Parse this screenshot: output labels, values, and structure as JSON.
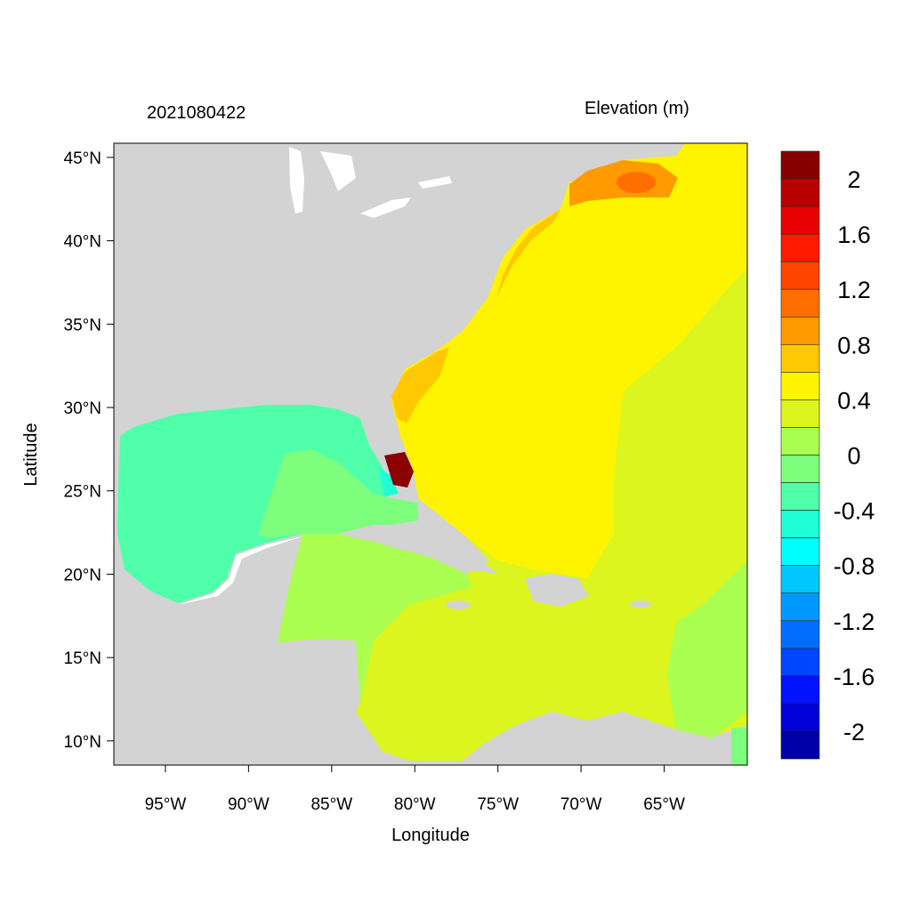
{
  "chart_data": {
    "type": "heatmap",
    "title_left": "2021080422",
    "title_right": "Elevation (m)",
    "xlabel": "Longitude",
    "ylabel": "Latitude",
    "xlim": [
      -98.1,
      -60.0
    ],
    "ylim": [
      8.55,
      45.85
    ],
    "x_ticks": [
      {
        "value": -95,
        "label": "95°W"
      },
      {
        "value": -90,
        "label": "90°W"
      },
      {
        "value": -85,
        "label": "85°W"
      },
      {
        "value": -80,
        "label": "80°W"
      },
      {
        "value": -75,
        "label": "75°W"
      },
      {
        "value": -70,
        "label": "70°W"
      },
      {
        "value": -65,
        "label": "65°W"
      }
    ],
    "y_ticks": [
      {
        "value": 45,
        "label": "45°N"
      },
      {
        "value": 40,
        "label": "40°N"
      },
      {
        "value": 35,
        "label": "35°N"
      },
      {
        "value": 30,
        "label": "30°N"
      },
      {
        "value": 25,
        "label": "25°N"
      },
      {
        "value": 20,
        "label": "20°N"
      },
      {
        "value": 15,
        "label": "15°N"
      },
      {
        "value": 10,
        "label": "10°N"
      }
    ],
    "colorbar": {
      "range": [
        -2.2,
        2.2
      ],
      "step": 0.2,
      "colors_top_to_bottom": [
        "#880000",
        "#b80000",
        "#e80000",
        "#ff1a00",
        "#ff4500",
        "#ff6f00",
        "#ff9a00",
        "#ffc800",
        "#fff400",
        "#dcf51f",
        "#aaff50",
        "#7dff7d",
        "#50ffaa",
        "#20ffd5",
        "#00ffff",
        "#00c8ff",
        "#0099ff",
        "#006fff",
        "#0045ff",
        "#0012ff",
        "#0000d8",
        "#0000a8"
      ],
      "labels": [
        {
          "value": 2,
          "label": "2"
        },
        {
          "value": 1.6,
          "label": "1.6"
        },
        {
          "value": 1.2,
          "label": "1.2"
        },
        {
          "value": 0.8,
          "label": "0.8"
        },
        {
          "value": 0.4,
          "label": "0.4"
        },
        {
          "value": 0,
          "label": "0"
        },
        {
          "value": -0.4,
          "label": "-0.4"
        },
        {
          "value": -0.8,
          "label": "-0.8"
        },
        {
          "value": -1.2,
          "label": "-1.2"
        },
        {
          "value": -1.6,
          "label": "-1.6"
        },
        {
          "value": -2,
          "label": "-2"
        }
      ]
    },
    "colors": {
      "land": "#d3d3d3",
      "atlantic": "#fff400",
      "caribbean": "#dcf51f",
      "gulf": "#50ffaa",
      "gulf_central": "#7dff7d",
      "west_caribbean": "#aaff50"
    }
  }
}
